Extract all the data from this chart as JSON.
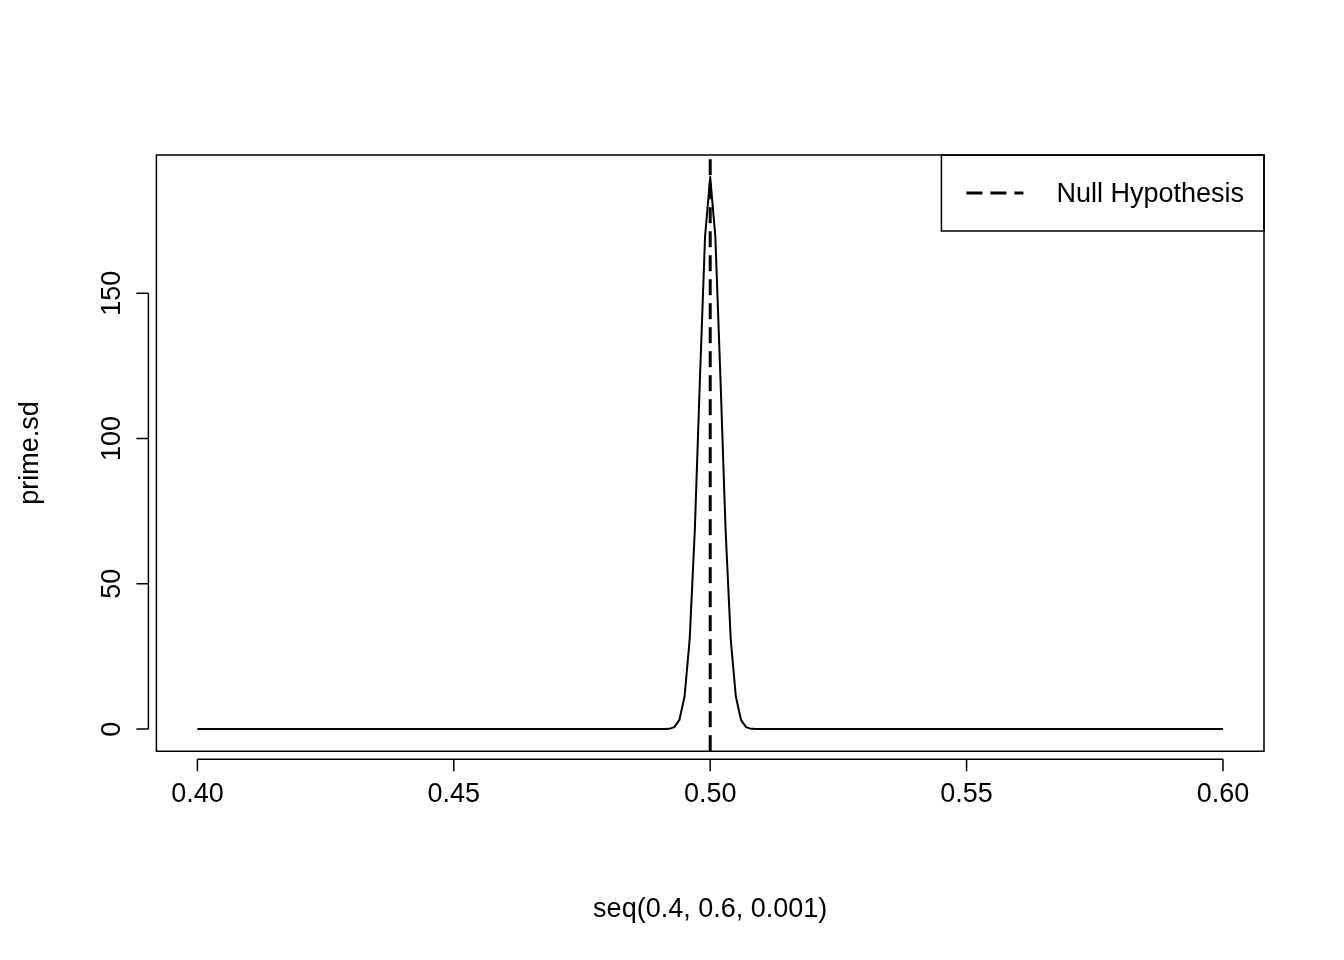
{
  "chart_data": {
    "type": "line",
    "xlabel": "seq(0.4, 0.6, 0.001)",
    "ylabel": "prime.sd",
    "xlim": [
      0.392,
      0.608
    ],
    "xticks": [
      {
        "value": 0.4,
        "label": "0.40"
      },
      {
        "value": 0.45,
        "label": "0.45"
      },
      {
        "value": 0.5,
        "label": "0.50"
      },
      {
        "value": 0.55,
        "label": "0.55"
      },
      {
        "value": 0.6,
        "label": "0.60"
      }
    ],
    "ylim": [
      -7.6,
      197.6
    ],
    "yticks": [
      0,
      50,
      100,
      150
    ],
    "grid": false,
    "legend": "top right",
    "marker": "none",
    "series": [
      {
        "color": "#000000",
        "line_style": "solid",
        "x": [
          0.4,
          0.49,
          0.491,
          0.492,
          0.493,
          0.494,
          0.495,
          0.496,
          0.497,
          0.498,
          0.499,
          0.5,
          0.501,
          0.502,
          0.503,
          0.504,
          0.505,
          0.506,
          0.507,
          0.508,
          0.509,
          0.51,
          0.6
        ],
        "values": [
          0,
          0,
          0,
          0.1,
          0.7,
          3.2,
          11.2,
          31,
          68.5,
          120.7,
          169.6,
          190,
          169.6,
          120.7,
          68.5,
          31,
          11.2,
          3.2,
          0.7,
          0.1,
          0,
          0,
          0
        ]
      }
    ],
    "ref_lines": [
      {
        "axis": "x",
        "value": 0.5,
        "label": "Null Hypothesis",
        "color": "#000000",
        "line_style": "dashed"
      }
    ]
  }
}
